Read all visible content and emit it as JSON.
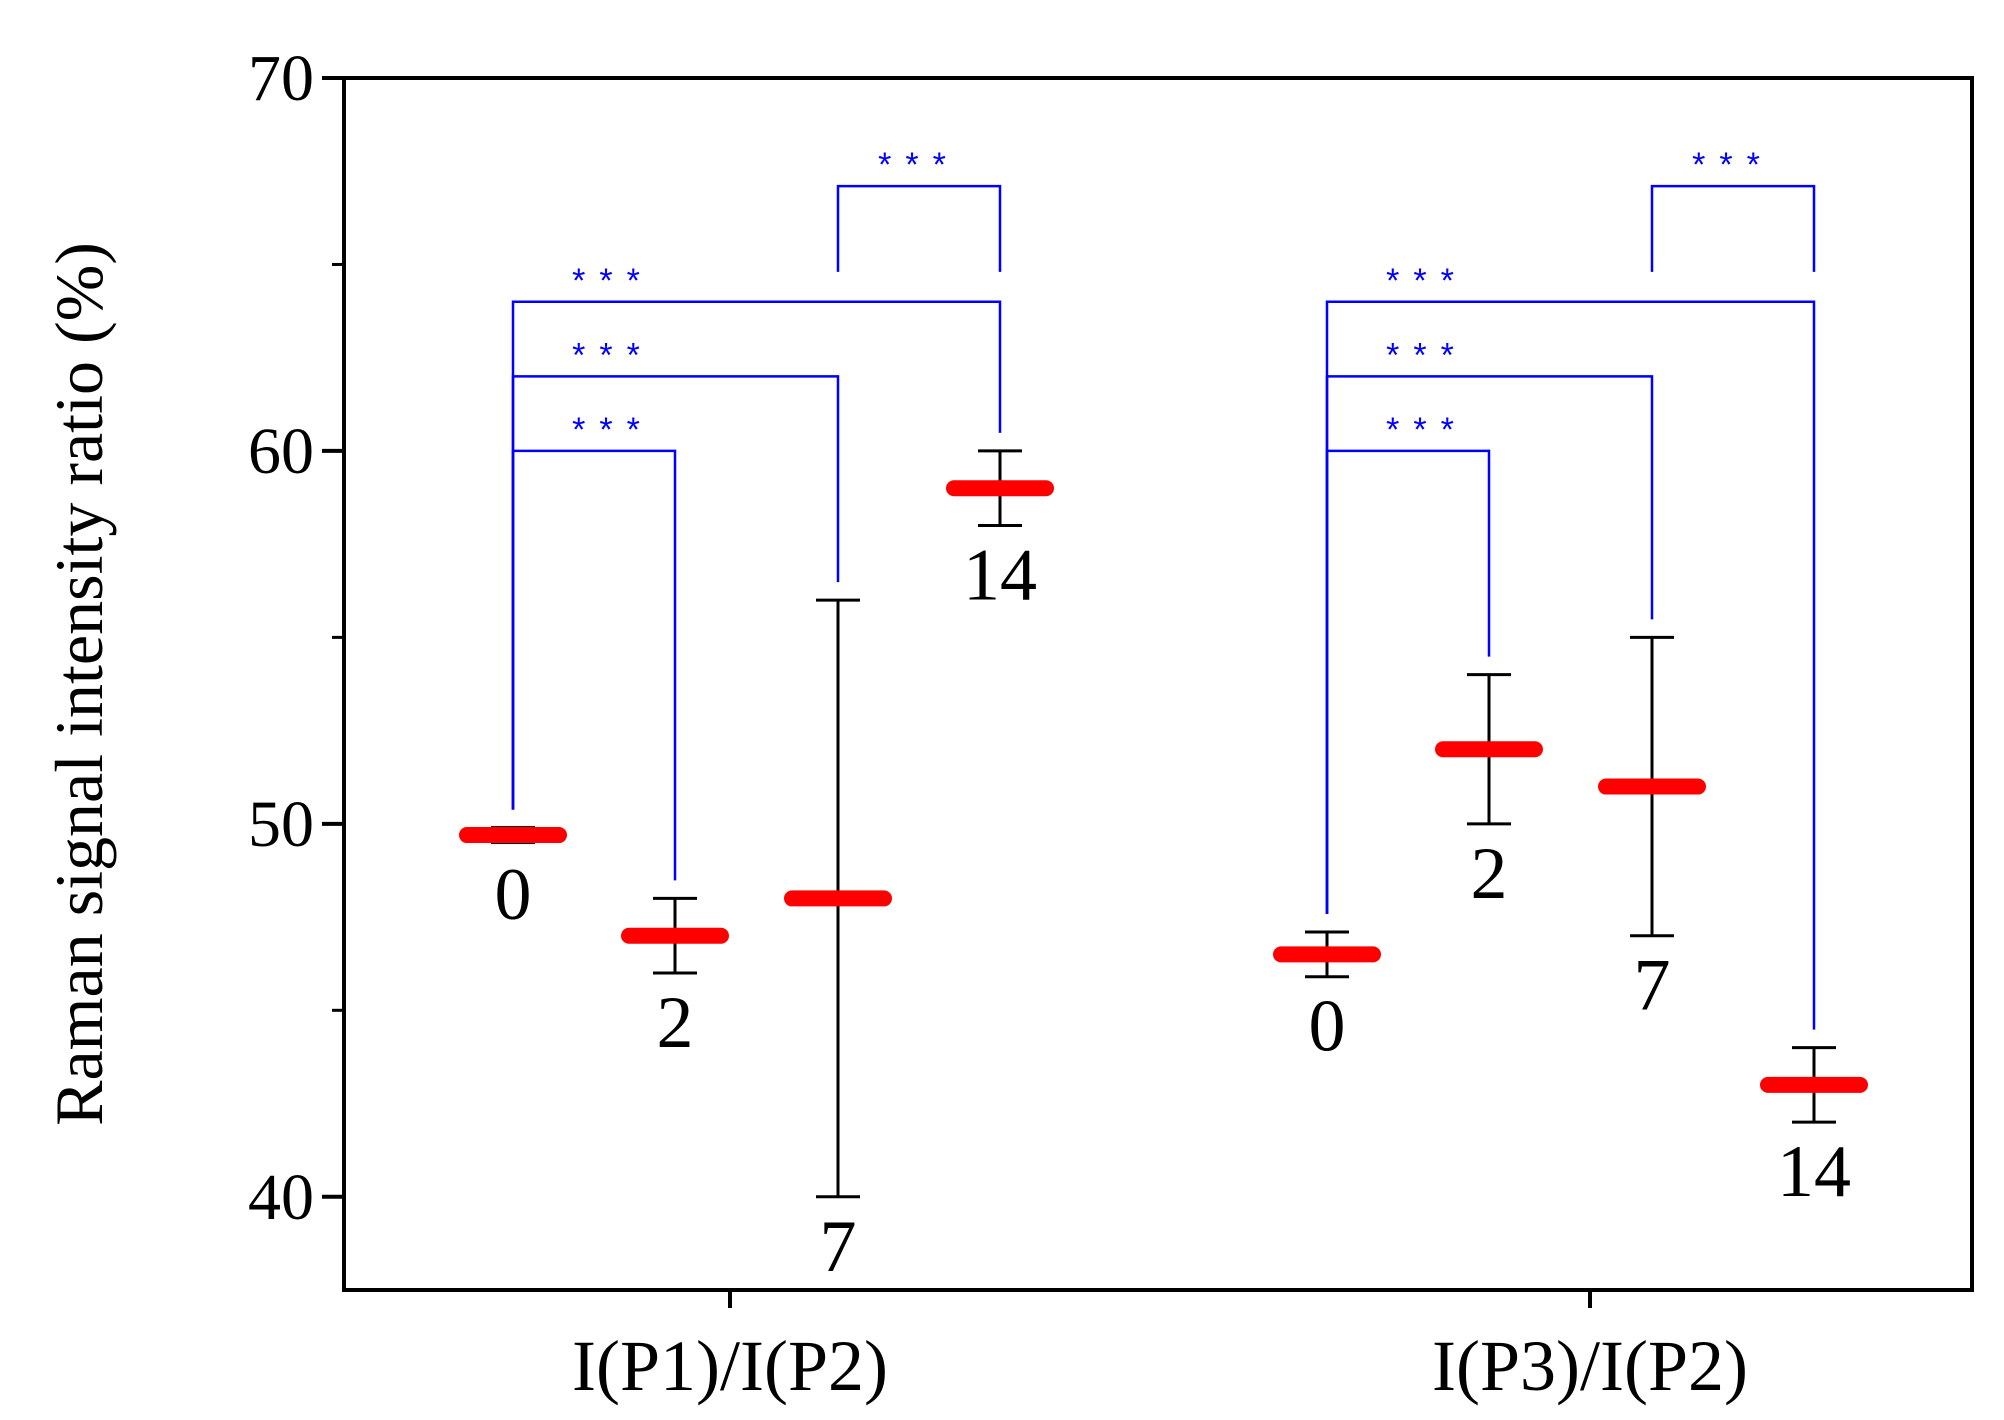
{
  "chart_data": {
    "type": "scatter",
    "ylabel": "Raman signal intensity ratio (%)",
    "xlabel": "",
    "ylim": [
      37.5,
      70
    ],
    "yticks": [
      40,
      50,
      60,
      70
    ],
    "grid": false,
    "groups": [
      {
        "name": "I(P1)/I(P2)",
        "points": [
          {
            "label": "0",
            "mean": 49.7,
            "err_low": 49.5,
            "err_high": 49.9
          },
          {
            "label": "2",
            "mean": 47.0,
            "err_low": 46.0,
            "err_high": 48.0
          },
          {
            "label": "7",
            "mean": 48.0,
            "err_low": 40.0,
            "err_high": 56.0
          },
          {
            "label": "14",
            "mean": 59.0,
            "err_low": 58.0,
            "err_high": 60.0
          }
        ]
      },
      {
        "name": "I(P3)/I(P2)",
        "points": [
          {
            "label": "0",
            "mean": 46.5,
            "err_low": 45.9,
            "err_high": 47.1
          },
          {
            "label": "2",
            "mean": 52.0,
            "err_low": 50.0,
            "err_high": 54.0
          },
          {
            "label": "7",
            "mean": 51.0,
            "err_low": 47.0,
            "err_high": 55.0
          },
          {
            "label": "14",
            "mean": 43.0,
            "err_low": 42.0,
            "err_high": 44.0
          }
        ]
      }
    ],
    "significance": [
      {
        "group": 0,
        "from": 0,
        "to": 1,
        "level": 60.0,
        "label": "***"
      },
      {
        "group": 0,
        "from": 0,
        "to": 2,
        "level": 62.0,
        "label": "***"
      },
      {
        "group": 0,
        "from": 0,
        "to": 3,
        "level": 64.0,
        "label": "***"
      },
      {
        "group": 0,
        "from": 2,
        "to": 3,
        "level": 67.1,
        "label": "***"
      },
      {
        "group": 1,
        "from": 0,
        "to": 1,
        "level": 60.0,
        "label": "***"
      },
      {
        "group": 1,
        "from": 0,
        "to": 2,
        "level": 62.0,
        "label": "***"
      },
      {
        "group": 1,
        "from": 0,
        "to": 3,
        "level": 64.0,
        "label": "***"
      },
      {
        "group": 1,
        "from": 2,
        "to": 3,
        "level": 67.1,
        "label": "***"
      }
    ],
    "colors": {
      "mean_marker": "#ff0000",
      "error_bar": "#000000",
      "significance": "#0000ff",
      "axis": "#000000"
    }
  }
}
